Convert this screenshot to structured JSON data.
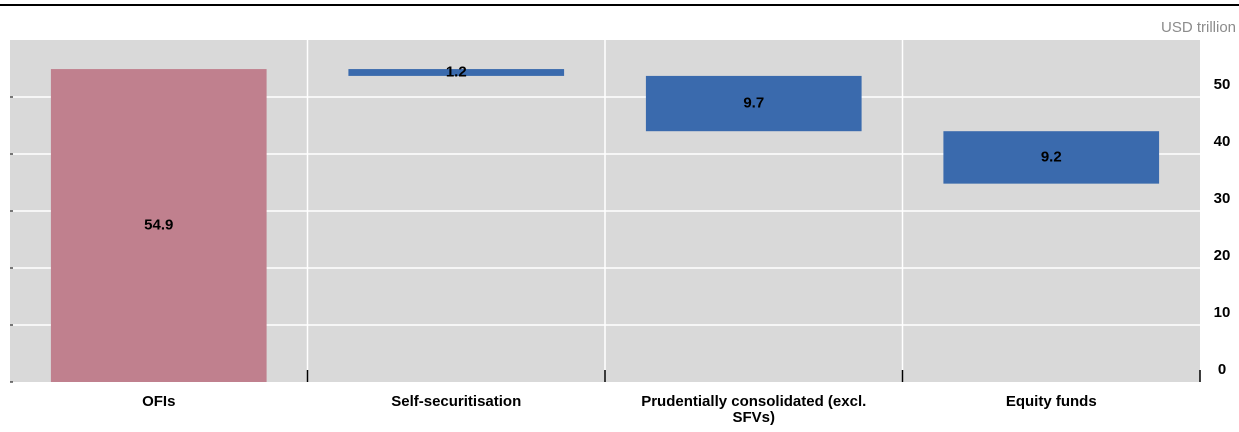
{
  "chart_data": {
    "type": "waterfall",
    "unit_label": "USD trillion",
    "categories": [
      "OFIs",
      "Self-securitisation",
      "Prudentially consolidated (excl. SFVs)",
      "Equity funds"
    ],
    "values": [
      54.9,
      1.2,
      9.7,
      9.2
    ],
    "colors": [
      "#c0808e",
      "#3a6aad",
      "#3a6aad",
      "#3a6aad"
    ],
    "ylim": [
      0,
      60
    ],
    "yticks": [
      0,
      10,
      20,
      30,
      40,
      50
    ],
    "grid": true
  }
}
